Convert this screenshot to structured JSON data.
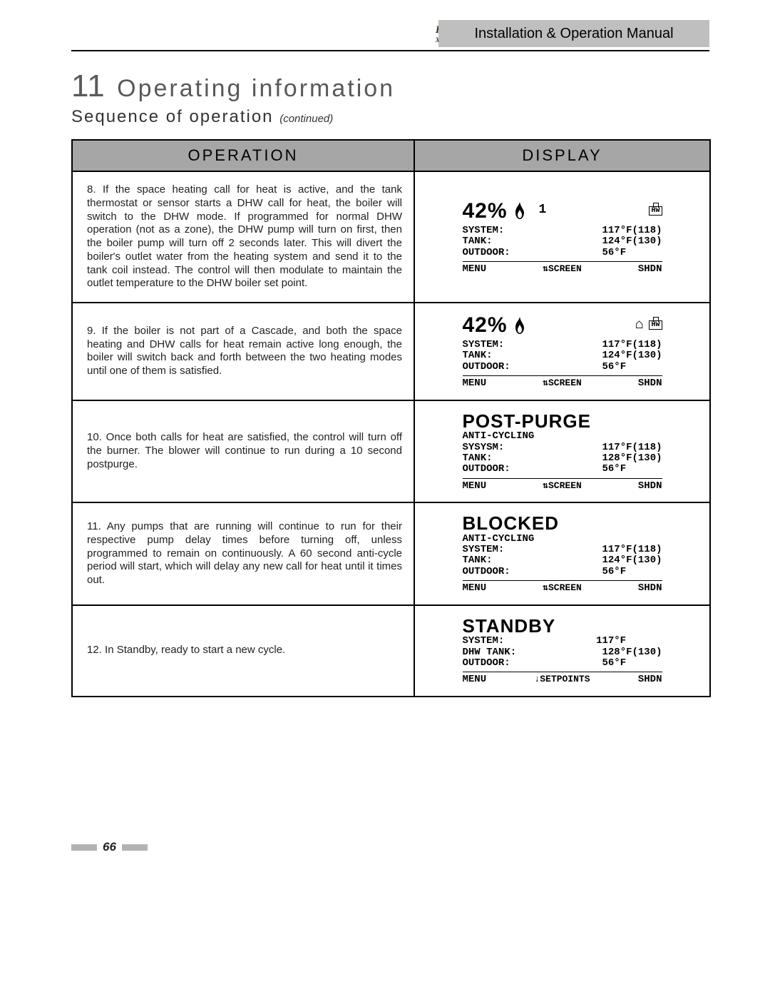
{
  "header": {
    "manual_title": "Installation & Operation Manual",
    "logo_main": "Knight",
    "logo_sub": "XL"
  },
  "chapter": {
    "number": "11",
    "title": "Operating information"
  },
  "subtitle": {
    "text": "Sequence of operation",
    "continued": "(continued)"
  },
  "table": {
    "headers": {
      "operation": "OPERATION",
      "display": "DISPLAY"
    },
    "rows": [
      {
        "op_num": "8.",
        "op_text": "If the space heating call for heat is active, and the tank thermostat or sensor starts a DHW call for heat, the boiler will switch to the DHW mode. If programmed for normal DHW operation (not as a zone), the DHW pump will turn on first, then the boiler pump will turn off 2 seconds later. This will divert the boiler's outlet water from the heating system and send it to the tank coil instead. The control will then modulate to maintain the outlet temperature to the DHW boiler set point.",
        "display": {
          "header_big": "42%",
          "flame": true,
          "extra_num": "1",
          "house": false,
          "hw": true,
          "lines": [
            [
              "SYSTEM:",
              "117°F(118)"
            ],
            [
              "TANK:",
              "124°F(130)"
            ],
            [
              "OUTDOOR:",
              "56°F      "
            ]
          ],
          "footer": [
            "MENU",
            "⇅SCREEN",
            "SHDN"
          ]
        }
      },
      {
        "op_num": "9.",
        "op_text": "If the boiler is not part of a Cascade, and both the space heating and DHW calls for heat remain active long enough, the boiler will switch back and forth between the two heating modes until one of them is satisfied.",
        "display": {
          "header_big": "42%",
          "flame": true,
          "extra_num": "",
          "house": true,
          "hw": true,
          "lines": [
            [
              "SYSTEM:",
              "117°F(118)"
            ],
            [
              "TANK:",
              "124°F(130)"
            ],
            [
              "OUTDOOR:",
              "56°F      "
            ]
          ],
          "footer": [
            "MENU",
            "⇅SCREEN",
            "SHDN"
          ]
        }
      },
      {
        "op_num": "10.",
        "op_text": "Once both calls for heat are satisfied, the control will turn off the burner. The blower will continue to run during a 10 second postpurge.",
        "display": {
          "header_big2": "POST-PURGE",
          "sub": "ANTI-CYCLING",
          "lines": [
            [
              "SYSYSM:",
              "117°F(118)"
            ],
            [
              "TANK:",
              "128°F(130)"
            ],
            [
              "OUTDOOR:",
              "56°F      "
            ]
          ],
          "footer": [
            "MENU",
            "⇅SCREEN",
            "SHDN"
          ]
        }
      },
      {
        "op_num": "11.",
        "op_text": "Any pumps that are running will continue to run for their respective pump delay times before turning off, unless programmed to remain on continuously. A 60 second anti-cycle period will start, which will delay any new call for heat until it times out.",
        "display": {
          "header_big2": "BLOCKED",
          "sub": "ANTI-CYCLING",
          "lines": [
            [
              "SYSTEM:",
              "117°F(118)"
            ],
            [
              "TANK:",
              "124°F(130)"
            ],
            [
              "OUTDOOR:",
              "56°F      "
            ]
          ],
          "footer": [
            "MENU",
            "⇅SCREEN",
            "SHDN"
          ]
        }
      },
      {
        "op_num": "12.",
        "op_text": "In Standby, ready to start a new cycle.",
        "display": {
          "header_big2": "STANDBY",
          "sub": "",
          "lines": [
            [
              "SYSTEM:",
              "117°F      "
            ],
            [
              "DHW TANK:",
              "128°F(130)"
            ],
            [
              "OUTDOOR:",
              "56°F      "
            ]
          ],
          "footer": [
            "MENU",
            "↓SETPOINTS",
            "SHDN"
          ]
        }
      }
    ]
  },
  "page_number": "66"
}
